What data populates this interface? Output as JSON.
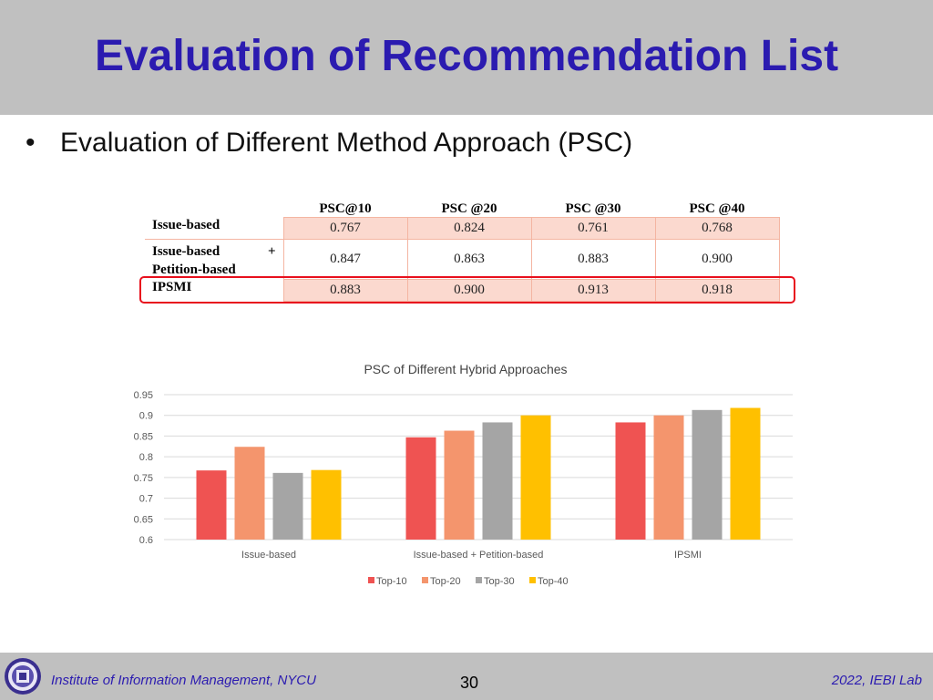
{
  "header": {
    "title": "Evaluation of Recommendation List"
  },
  "bullet": {
    "text": "Evaluation of Different Method Approach (PSC)",
    "glyph": "•"
  },
  "table": {
    "headers": [
      "PSC@10",
      "PSC @20",
      "PSC @30",
      "PSC @40"
    ],
    "rows": [
      {
        "label": "Issue-based",
        "label2": "",
        "plus": "",
        "values": [
          "0.767",
          "0.824",
          "0.761",
          "0.768"
        ]
      },
      {
        "label": "Issue-based",
        "label2": "Petition-based",
        "plus": "+",
        "values": [
          "0.847",
          "0.863",
          "0.883",
          "0.900"
        ]
      },
      {
        "label": "IPSMI",
        "label2": "",
        "plus": "",
        "values": [
          "0.883",
          "0.900",
          "0.913",
          "0.918"
        ]
      }
    ],
    "highlight_color": "#e8101d"
  },
  "chart_data": {
    "type": "bar",
    "title": "PSC of Different Hybrid Approaches",
    "xlabel": "",
    "ylabel": "",
    "categories": [
      "Issue-based",
      "Issue-based + Petition-based",
      "IPSMI"
    ],
    "series": [
      {
        "name": "Top-10",
        "color": "#ef5352",
        "values": [
          0.767,
          0.847,
          0.883
        ]
      },
      {
        "name": "Top-20",
        "color": "#f4956d",
        "values": [
          0.824,
          0.863,
          0.9
        ]
      },
      {
        "name": "Top-30",
        "color": "#a5a5a5",
        "values": [
          0.761,
          0.883,
          0.913
        ]
      },
      {
        "name": "Top-40",
        "color": "#ffc000",
        "values": [
          0.768,
          0.9,
          0.918
        ]
      }
    ],
    "yticks": [
      "0.6",
      "0.65",
      "0.7",
      "0.75",
      "0.8",
      "0.85",
      "0.9",
      "0.95"
    ],
    "ylim": [
      0.6,
      0.95
    ],
    "grid": true,
    "legend": "bottom"
  },
  "footer": {
    "left": "Institute of Information Management, NYCU",
    "page": "30",
    "right": "2022, IEBI Lab"
  },
  "colors": {
    "title": "#2b1bb0",
    "header_bg": "#c0c0c0",
    "pink_cell": "#fbd9cf"
  }
}
